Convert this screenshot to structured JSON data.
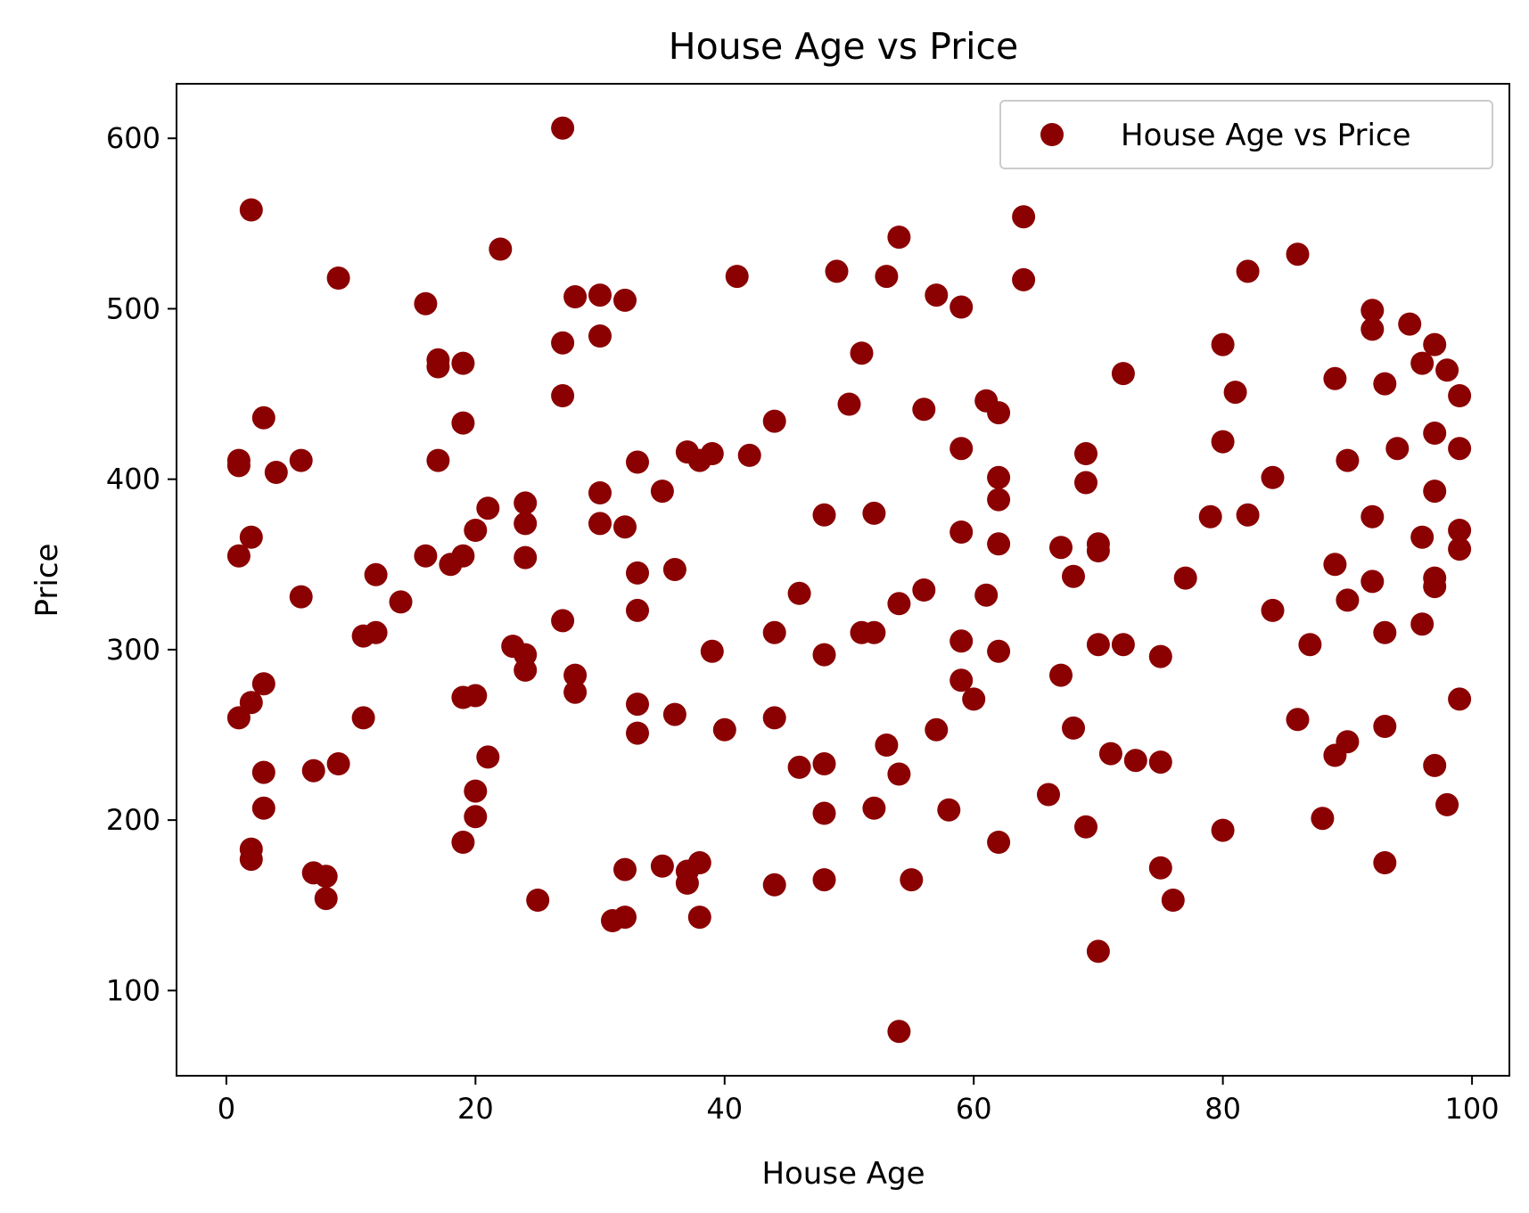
{
  "chart_data": {
    "type": "scatter",
    "title": "House Age vs Price",
    "xlabel": "House Age",
    "ylabel": "Price",
    "xlim": [
      -4,
      103
    ],
    "ylim": [
      50,
      632
    ],
    "xticks": [
      0,
      20,
      40,
      60,
      80,
      100
    ],
    "yticks": [
      100,
      200,
      300,
      400,
      500,
      600
    ],
    "grid": false,
    "legend": {
      "position": "top-right",
      "entries": [
        "House Age vs Price"
      ]
    },
    "colors": {
      "marker": "#8b0000"
    },
    "series": [
      {
        "name": "House Age vs Price",
        "points": [
          [
            1,
            260
          ],
          [
            1,
            355
          ],
          [
            1,
            408
          ],
          [
            1,
            411
          ],
          [
            2,
            558
          ],
          [
            2,
            366
          ],
          [
            2,
            269
          ],
          [
            2,
            183
          ],
          [
            2,
            177
          ],
          [
            3,
            436
          ],
          [
            3,
            280
          ],
          [
            3,
            228
          ],
          [
            3,
            207
          ],
          [
            4,
            404
          ],
          [
            6,
            411
          ],
          [
            6,
            331
          ],
          [
            7,
            229
          ],
          [
            7,
            169
          ],
          [
            8,
            167
          ],
          [
            8,
            154
          ],
          [
            9,
            518
          ],
          [
            9,
            233
          ],
          [
            11,
            308
          ],
          [
            11,
            260
          ],
          [
            12,
            344
          ],
          [
            12,
            310
          ],
          [
            14,
            328
          ],
          [
            16,
            503
          ],
          [
            16,
            355
          ],
          [
            17,
            470
          ],
          [
            17,
            466
          ],
          [
            17,
            411
          ],
          [
            18,
            350
          ],
          [
            19,
            468
          ],
          [
            19,
            433
          ],
          [
            19,
            355
          ],
          [
            19,
            272
          ],
          [
            19,
            187
          ],
          [
            20,
            370
          ],
          [
            20,
            273
          ],
          [
            20,
            217
          ],
          [
            20,
            202
          ],
          [
            21,
            383
          ],
          [
            21,
            237
          ],
          [
            22,
            535
          ],
          [
            23,
            302
          ],
          [
            24,
            386
          ],
          [
            24,
            374
          ],
          [
            24,
            354
          ],
          [
            24,
            297
          ],
          [
            24,
            288
          ],
          [
            25,
            153
          ],
          [
            27,
            606
          ],
          [
            27,
            480
          ],
          [
            27,
            449
          ],
          [
            27,
            317
          ],
          [
            28,
            507
          ],
          [
            28,
            285
          ],
          [
            28,
            275
          ],
          [
            30,
            508
          ],
          [
            30,
            484
          ],
          [
            30,
            392
          ],
          [
            30,
            374
          ],
          [
            31,
            141
          ],
          [
            32,
            505
          ],
          [
            32,
            372
          ],
          [
            32,
            171
          ],
          [
            32,
            143
          ],
          [
            33,
            410
          ],
          [
            33,
            345
          ],
          [
            33,
            323
          ],
          [
            33,
            268
          ],
          [
            33,
            251
          ],
          [
            35,
            393
          ],
          [
            35,
            173
          ],
          [
            36,
            347
          ],
          [
            36,
            262
          ],
          [
            37,
            416
          ],
          [
            37,
            170
          ],
          [
            37,
            163
          ],
          [
            38,
            411
          ],
          [
            38,
            175
          ],
          [
            38,
            143
          ],
          [
            39,
            415
          ],
          [
            39,
            299
          ],
          [
            40,
            253
          ],
          [
            41,
            519
          ],
          [
            42,
            414
          ],
          [
            44,
            434
          ],
          [
            44,
            310
          ],
          [
            44,
            260
          ],
          [
            44,
            162
          ],
          [
            46,
            333
          ],
          [
            46,
            231
          ],
          [
            48,
            379
          ],
          [
            48,
            297
          ],
          [
            48,
            233
          ],
          [
            48,
            204
          ],
          [
            48,
            165
          ],
          [
            49,
            522
          ],
          [
            50,
            444
          ],
          [
            51,
            474
          ],
          [
            51,
            310
          ],
          [
            52,
            380
          ],
          [
            52,
            310
          ],
          [
            52,
            207
          ],
          [
            53,
            519
          ],
          [
            53,
            244
          ],
          [
            54,
            542
          ],
          [
            54,
            327
          ],
          [
            54,
            227
          ],
          [
            54,
            76
          ],
          [
            55,
            165
          ],
          [
            56,
            441
          ],
          [
            56,
            335
          ],
          [
            57,
            508
          ],
          [
            57,
            253
          ],
          [
            58,
            206
          ],
          [
            59,
            501
          ],
          [
            59,
            418
          ],
          [
            59,
            369
          ],
          [
            59,
            305
          ],
          [
            59,
            282
          ],
          [
            60,
            271
          ],
          [
            61,
            446
          ],
          [
            61,
            332
          ],
          [
            62,
            439
          ],
          [
            62,
            401
          ],
          [
            62,
            388
          ],
          [
            62,
            362
          ],
          [
            62,
            299
          ],
          [
            62,
            187
          ],
          [
            64,
            554
          ],
          [
            64,
            517
          ],
          [
            66,
            215
          ],
          [
            67,
            360
          ],
          [
            67,
            285
          ],
          [
            68,
            343
          ],
          [
            68,
            254
          ],
          [
            69,
            415
          ],
          [
            69,
            398
          ],
          [
            69,
            196
          ],
          [
            70,
            362
          ],
          [
            70,
            358
          ],
          [
            70,
            303
          ],
          [
            70,
            123
          ],
          [
            71,
            239
          ],
          [
            72,
            462
          ],
          [
            72,
            303
          ],
          [
            73,
            235
          ],
          [
            75,
            296
          ],
          [
            75,
            234
          ],
          [
            75,
            172
          ],
          [
            76,
            153
          ],
          [
            77,
            342
          ],
          [
            79,
            378
          ],
          [
            80,
            479
          ],
          [
            80,
            422
          ],
          [
            80,
            194
          ],
          [
            81,
            451
          ],
          [
            82,
            522
          ],
          [
            82,
            379
          ],
          [
            84,
            401
          ],
          [
            84,
            323
          ],
          [
            86,
            532
          ],
          [
            86,
            259
          ],
          [
            87,
            303
          ],
          [
            88,
            201
          ],
          [
            89,
            459
          ],
          [
            89,
            350
          ],
          [
            89,
            238
          ],
          [
            90,
            411
          ],
          [
            90,
            329
          ],
          [
            90,
            246
          ],
          [
            92,
            499
          ],
          [
            92,
            488
          ],
          [
            92,
            378
          ],
          [
            92,
            340
          ],
          [
            93,
            456
          ],
          [
            93,
            310
          ],
          [
            93,
            255
          ],
          [
            93,
            175
          ],
          [
            94,
            418
          ],
          [
            95,
            491
          ],
          [
            96,
            468
          ],
          [
            96,
            366
          ],
          [
            96,
            315
          ],
          [
            97,
            479
          ],
          [
            97,
            427
          ],
          [
            97,
            393
          ],
          [
            97,
            342
          ],
          [
            97,
            337
          ],
          [
            97,
            232
          ],
          [
            98,
            464
          ],
          [
            98,
            209
          ],
          [
            99,
            449
          ],
          [
            99,
            418
          ],
          [
            99,
            370
          ],
          [
            99,
            359
          ],
          [
            99,
            271
          ]
        ]
      }
    ]
  }
}
